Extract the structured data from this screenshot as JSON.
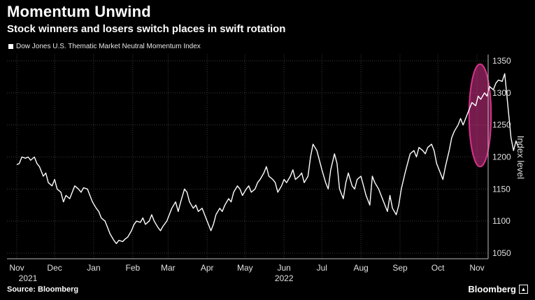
{
  "header": {
    "title": "Momentum Unwind",
    "subtitle": "Stock winners and losers switch places in swift rotation"
  },
  "footer": {
    "source": "Source: Bloomberg",
    "brand": "Bloomberg"
  },
  "colors": {
    "background": "#000000",
    "line": "#ffffff",
    "highlight": "#d6338a",
    "grid": "#3a3a3a"
  },
  "chart_data": {
    "type": "line",
    "title": "Momentum Unwind",
    "subtitle": "Stock winners and losers switch places in swift rotation",
    "ylabel": "Index level",
    "ylim": [
      1050,
      1350
    ],
    "yticks": [
      1050,
      1100,
      1150,
      1200,
      1250,
      1300,
      1350
    ],
    "y_axis_side": "right",
    "grid": true,
    "legend_placement": "top-left",
    "x_ticks": [
      {
        "label": "Nov",
        "date": "2021-11-01",
        "year": "2021"
      },
      {
        "label": "Dec",
        "date": "2021-12-01"
      },
      {
        "label": "Jan",
        "date": "2022-01-01"
      },
      {
        "label": "Feb",
        "date": "2022-02-01"
      },
      {
        "label": "Mar",
        "date": "2022-03-01"
      },
      {
        "label": "Apr",
        "date": "2022-04-01"
      },
      {
        "label": "May",
        "date": "2022-05-01"
      },
      {
        "label": "Jun",
        "date": "2022-06-01",
        "year": "2022"
      },
      {
        "label": "Jul",
        "date": "2022-07-01"
      },
      {
        "label": "Aug",
        "date": "2022-08-01"
      },
      {
        "label": "Sep",
        "date": "2022-09-01"
      },
      {
        "label": "Oct",
        "date": "2022-10-01"
      },
      {
        "label": "Nov",
        "date": "2022-11-01"
      }
    ],
    "highlight": {
      "shape": "ellipse",
      "x_range": [
        "2022-10-28",
        "2022-11-10"
      ],
      "y_range": [
        1185,
        1345
      ]
    },
    "series": [
      {
        "name": "Dow Jones U.S. Thematic Market Neutral Momentum Index",
        "points": [
          [
            "2021-11-01",
            1188
          ],
          [
            "2021-11-03",
            1190
          ],
          [
            "2021-11-05",
            1200
          ],
          [
            "2021-11-08",
            1198
          ],
          [
            "2021-11-10",
            1200
          ],
          [
            "2021-11-12",
            1195
          ],
          [
            "2021-11-15",
            1200
          ],
          [
            "2021-11-17",
            1190
          ],
          [
            "2021-11-19",
            1185
          ],
          [
            "2021-11-22",
            1170
          ],
          [
            "2021-11-24",
            1175
          ],
          [
            "2021-11-26",
            1160
          ],
          [
            "2021-11-29",
            1155
          ],
          [
            "2021-12-01",
            1165
          ],
          [
            "2021-12-03",
            1150
          ],
          [
            "2021-12-06",
            1145
          ],
          [
            "2021-12-08",
            1130
          ],
          [
            "2021-12-10",
            1140
          ],
          [
            "2021-12-13",
            1135
          ],
          [
            "2021-12-15",
            1145
          ],
          [
            "2021-12-17",
            1155
          ],
          [
            "2021-12-20",
            1150
          ],
          [
            "2021-12-22",
            1145
          ],
          [
            "2021-12-24",
            1152
          ],
          [
            "2021-12-27",
            1150
          ],
          [
            "2021-12-29",
            1140
          ],
          [
            "2021-12-31",
            1130
          ],
          [
            "2022-01-03",
            1120
          ],
          [
            "2022-01-05",
            1115
          ],
          [
            "2022-01-07",
            1105
          ],
          [
            "2022-01-10",
            1100
          ],
          [
            "2022-01-12",
            1090
          ],
          [
            "2022-01-14",
            1080
          ],
          [
            "2022-01-17",
            1070
          ],
          [
            "2022-01-19",
            1065
          ],
          [
            "2022-01-21",
            1070
          ],
          [
            "2022-01-24",
            1068
          ],
          [
            "2022-01-26",
            1072
          ],
          [
            "2022-01-28",
            1075
          ],
          [
            "2022-01-31",
            1085
          ],
          [
            "2022-02-02",
            1095
          ],
          [
            "2022-02-04",
            1100
          ],
          [
            "2022-02-07",
            1098
          ],
          [
            "2022-02-09",
            1105
          ],
          [
            "2022-02-11",
            1095
          ],
          [
            "2022-02-14",
            1100
          ],
          [
            "2022-02-16",
            1110
          ],
          [
            "2022-02-18",
            1100
          ],
          [
            "2022-02-21",
            1090
          ],
          [
            "2022-02-23",
            1085
          ],
          [
            "2022-02-25",
            1092
          ],
          [
            "2022-02-28",
            1100
          ],
          [
            "2022-03-02",
            1110
          ],
          [
            "2022-03-04",
            1120
          ],
          [
            "2022-03-07",
            1130
          ],
          [
            "2022-03-09",
            1115
          ],
          [
            "2022-03-11",
            1130
          ],
          [
            "2022-03-14",
            1150
          ],
          [
            "2022-03-16",
            1145
          ],
          [
            "2022-03-18",
            1130
          ],
          [
            "2022-03-21",
            1120
          ],
          [
            "2022-03-23",
            1125
          ],
          [
            "2022-03-25",
            1115
          ],
          [
            "2022-03-28",
            1120
          ],
          [
            "2022-03-30",
            1110
          ],
          [
            "2022-04-01",
            1100
          ],
          [
            "2022-04-04",
            1085
          ],
          [
            "2022-04-06",
            1095
          ],
          [
            "2022-04-08",
            1110
          ],
          [
            "2022-04-11",
            1120
          ],
          [
            "2022-04-13",
            1115
          ],
          [
            "2022-04-15",
            1125
          ],
          [
            "2022-04-18",
            1135
          ],
          [
            "2022-04-20",
            1130
          ],
          [
            "2022-04-22",
            1145
          ],
          [
            "2022-04-25",
            1155
          ],
          [
            "2022-04-27",
            1150
          ],
          [
            "2022-04-29",
            1140
          ],
          [
            "2022-05-02",
            1150
          ],
          [
            "2022-05-04",
            1155
          ],
          [
            "2022-05-06",
            1145
          ],
          [
            "2022-05-09",
            1150
          ],
          [
            "2022-05-11",
            1160
          ],
          [
            "2022-05-13",
            1165
          ],
          [
            "2022-05-16",
            1175
          ],
          [
            "2022-05-18",
            1185
          ],
          [
            "2022-05-20",
            1170
          ],
          [
            "2022-05-23",
            1165
          ],
          [
            "2022-05-25",
            1160
          ],
          [
            "2022-05-27",
            1145
          ],
          [
            "2022-05-30",
            1155
          ],
          [
            "2022-06-01",
            1165
          ],
          [
            "2022-06-03",
            1160
          ],
          [
            "2022-06-06",
            1170
          ],
          [
            "2022-06-08",
            1180
          ],
          [
            "2022-06-10",
            1165
          ],
          [
            "2022-06-13",
            1170
          ],
          [
            "2022-06-15",
            1175
          ],
          [
            "2022-06-17",
            1160
          ],
          [
            "2022-06-20",
            1170
          ],
          [
            "2022-06-22",
            1200
          ],
          [
            "2022-06-24",
            1220
          ],
          [
            "2022-06-27",
            1210
          ],
          [
            "2022-06-29",
            1195
          ],
          [
            "2022-07-01",
            1180
          ],
          [
            "2022-07-04",
            1160
          ],
          [
            "2022-07-06",
            1150
          ],
          [
            "2022-07-08",
            1180
          ],
          [
            "2022-07-11",
            1205
          ],
          [
            "2022-07-13",
            1190
          ],
          [
            "2022-07-15",
            1150
          ],
          [
            "2022-07-18",
            1135
          ],
          [
            "2022-07-20",
            1160
          ],
          [
            "2022-07-22",
            1175
          ],
          [
            "2022-07-25",
            1155
          ],
          [
            "2022-07-27",
            1150
          ],
          [
            "2022-07-29",
            1165
          ],
          [
            "2022-08-01",
            1170
          ],
          [
            "2022-08-03",
            1155
          ],
          [
            "2022-08-05",
            1140
          ],
          [
            "2022-08-08",
            1125
          ],
          [
            "2022-08-10",
            1170
          ],
          [
            "2022-08-12",
            1160
          ],
          [
            "2022-08-15",
            1150
          ],
          [
            "2022-08-17",
            1140
          ],
          [
            "2022-08-19",
            1130
          ],
          [
            "2022-08-22",
            1115
          ],
          [
            "2022-08-24",
            1140
          ],
          [
            "2022-08-26",
            1120
          ],
          [
            "2022-08-29",
            1110
          ],
          [
            "2022-08-31",
            1125
          ],
          [
            "2022-09-02",
            1150
          ],
          [
            "2022-09-05",
            1175
          ],
          [
            "2022-09-07",
            1190
          ],
          [
            "2022-09-09",
            1205
          ],
          [
            "2022-09-12",
            1210
          ],
          [
            "2022-09-14",
            1200
          ],
          [
            "2022-09-16",
            1215
          ],
          [
            "2022-09-19",
            1210
          ],
          [
            "2022-09-21",
            1205
          ],
          [
            "2022-09-23",
            1215
          ],
          [
            "2022-09-26",
            1220
          ],
          [
            "2022-09-28",
            1210
          ],
          [
            "2022-09-30",
            1190
          ],
          [
            "2022-10-03",
            1175
          ],
          [
            "2022-10-05",
            1165
          ],
          [
            "2022-10-07",
            1185
          ],
          [
            "2022-10-10",
            1210
          ],
          [
            "2022-10-12",
            1230
          ],
          [
            "2022-10-14",
            1240
          ],
          [
            "2022-10-17",
            1250
          ],
          [
            "2022-10-19",
            1260
          ],
          [
            "2022-10-21",
            1250
          ],
          [
            "2022-10-24",
            1265
          ],
          [
            "2022-10-26",
            1275
          ],
          [
            "2022-10-28",
            1285
          ],
          [
            "2022-10-31",
            1280
          ],
          [
            "2022-11-02",
            1295
          ],
          [
            "2022-11-04",
            1290
          ],
          [
            "2022-11-07",
            1300
          ],
          [
            "2022-11-09",
            1295
          ],
          [
            "2022-11-11",
            1310
          ],
          [
            "2022-11-14",
            1305
          ],
          [
            "2022-11-16",
            1315
          ],
          [
            "2022-11-18",
            1320
          ],
          [
            "2022-11-21",
            1318
          ],
          [
            "2022-11-23",
            1330
          ],
          [
            "2022-11-25",
            1290
          ],
          [
            "2022-11-28",
            1230
          ],
          [
            "2022-11-30",
            1210
          ],
          [
            "2022-12-02",
            1225
          ],
          [
            "2022-12-04",
            1215
          ]
        ]
      }
    ]
  }
}
